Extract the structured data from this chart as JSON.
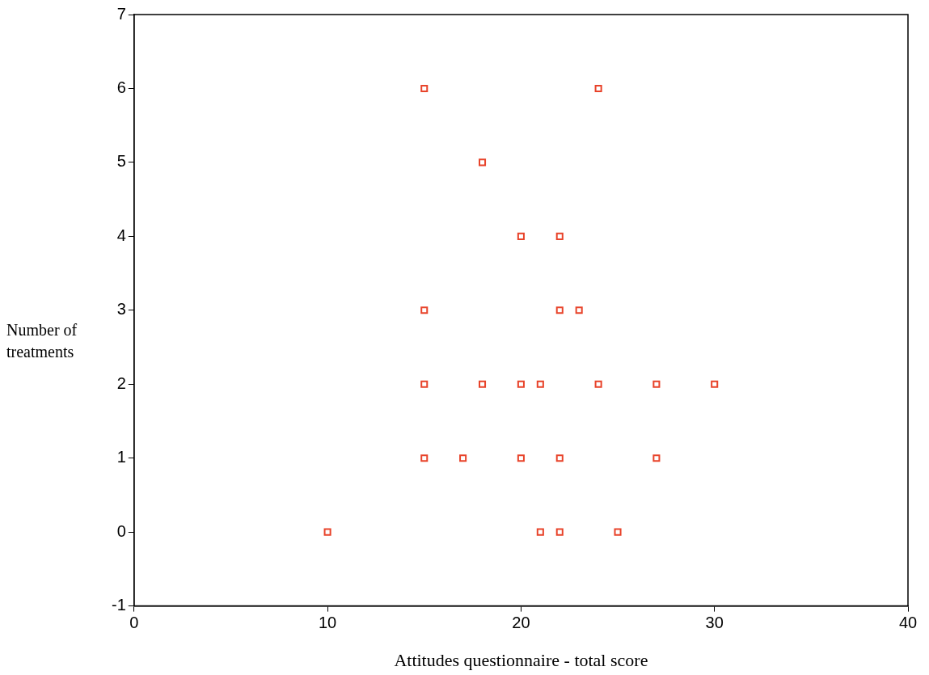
{
  "chart_data": {
    "type": "scatter",
    "xlabel": "Attitudes questionnaire - total score",
    "ylabel": "Number of treatments",
    "x": [
      15,
      24,
      18,
      20,
      22,
      15,
      22,
      23,
      15,
      18,
      20,
      21,
      24,
      27,
      30,
      15,
      17,
      20,
      22,
      27,
      10,
      21,
      22,
      25
    ],
    "values": [
      6,
      6,
      5,
      4,
      4,
      3,
      3,
      3,
      2,
      2,
      2,
      2,
      2,
      2,
      2,
      1,
      1,
      1,
      1,
      1,
      0,
      0,
      0,
      0
    ],
    "color": "#e8432a",
    "marker": "square",
    "xlim": [
      0,
      40
    ],
    "xticks": [
      0,
      10,
      20,
      30,
      40
    ],
    "ylim": [
      -1,
      7
    ],
    "yticks": [
      -1,
      0,
      1,
      2,
      3,
      4,
      5,
      6,
      7
    ],
    "grid": false,
    "legend": false
  }
}
